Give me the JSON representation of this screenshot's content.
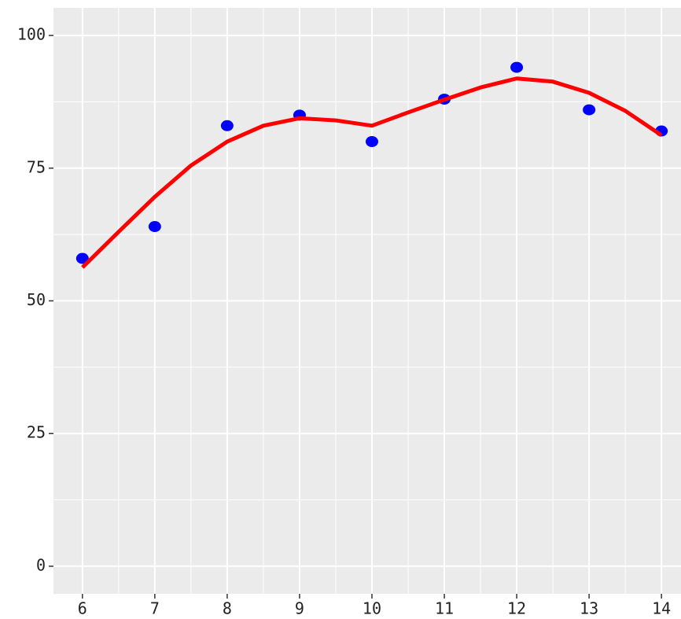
{
  "chart_data": {
    "type": "scatter",
    "series": [
      {
        "type": "scatter",
        "color": "#0000ff",
        "x": [
          6,
          7,
          8,
          9,
          10,
          11,
          12,
          13,
          14
        ],
        "values": [
          58,
          64,
          83,
          85,
          80,
          88,
          94,
          86,
          82
        ]
      },
      {
        "type": "line",
        "color": "#ff0000",
        "x": [
          6,
          6.5,
          7,
          7.5,
          8,
          8.5,
          9,
          9.5,
          10,
          10.5,
          11,
          11.5,
          12,
          12.5,
          13,
          13.5,
          14
        ],
        "values": [
          56.3,
          63,
          69.6,
          75.5,
          80,
          83,
          84.4,
          84,
          83,
          85.5,
          87.9,
          90.2,
          91.9,
          91.3,
          89.2,
          85.8,
          81.2
        ]
      }
    ],
    "xlim": [
      5.6,
      14.27
    ],
    "ylim": [
      -5.2,
      105.2
    ],
    "xticks": [
      6,
      7,
      8,
      9,
      10,
      11,
      12,
      13,
      14
    ],
    "yticks": [
      0,
      25,
      50,
      75,
      100
    ],
    "grid": true,
    "panel_color": "#ebebeb"
  }
}
